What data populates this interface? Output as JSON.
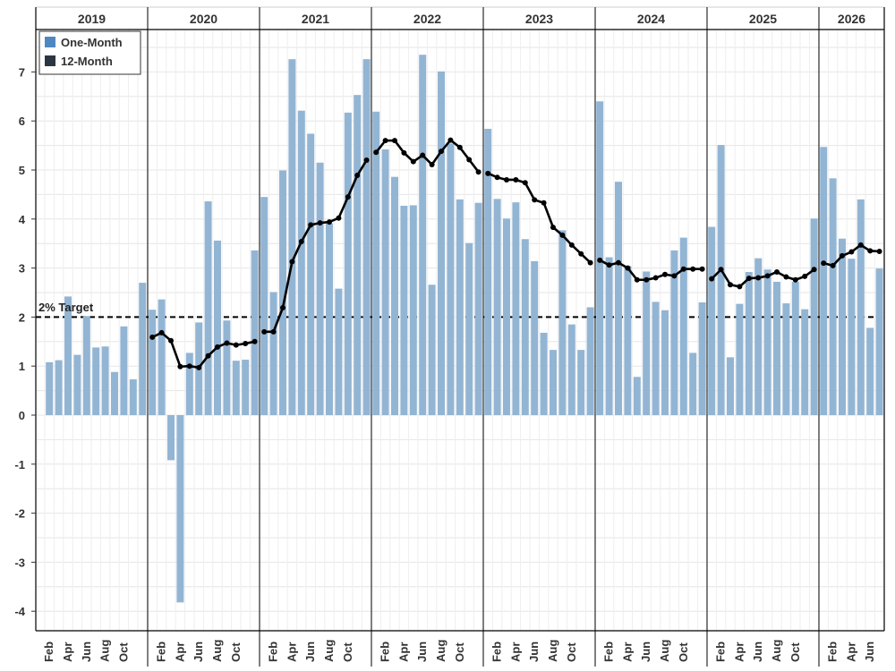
{
  "chart_data": {
    "type": "bar",
    "title": "",
    "xlabel": "",
    "ylabel": "",
    "ylim": [
      -4.5,
      7.8
    ],
    "yticks": [
      -4,
      -3,
      -2,
      -1,
      0,
      1,
      2,
      3,
      4,
      5,
      6,
      7
    ],
    "grid": true,
    "legend_position": "top-left",
    "years": [
      "2019",
      "2020",
      "2021",
      "2022",
      "2023",
      "2024",
      "2025",
      "2026"
    ],
    "month_tick_labels": [
      "Feb",
      "Apr",
      "Jun",
      "Aug",
      "Oct"
    ],
    "reference_line": {
      "label": "2% Target",
      "value": 2
    },
    "colors": {
      "one_month": "#4f87c0",
      "one_month_bar": "#93b5d4",
      "twelve_month": "#2b3544",
      "twelve_month_line": "#000000",
      "target_line": "#000000"
    },
    "series": [
      {
        "name": "One-Month",
        "type": "bar",
        "values": [
          [
            1.08,
            1.12,
            2.42,
            1.23,
            2.02,
            1.38,
            1.4,
            0.88,
            1.81,
            0.73,
            2.7
          ],
          [
            2.15,
            2.36,
            -0.92,
            -3.82,
            1.27,
            1.89,
            4.36,
            3.56,
            1.93,
            1.11,
            1.13,
            3.36
          ],
          [
            4.45,
            2.51,
            4.99,
            7.26,
            6.21,
            5.74,
            5.15,
            3.91,
            2.58,
            6.17,
            6.53,
            7.26
          ],
          [
            6.19,
            5.42,
            4.86,
            4.27,
            4.28,
            7.35,
            2.66,
            7.01,
            5.54,
            4.4,
            3.51,
            4.33
          ],
          [
            5.84,
            4.41,
            4.01,
            4.34,
            3.59,
            3.14,
            1.68,
            1.33,
            3.77,
            1.85,
            1.33,
            2.2
          ],
          [
            6.4,
            3.22,
            4.76,
            3.04,
            0.78,
            2.93,
            2.31,
            2.14,
            3.36,
            3.62,
            1.27,
            2.3
          ],
          [
            3.84,
            5.51,
            1.18,
            2.27,
            2.92,
            3.2,
            2.97,
            2.72,
            2.28,
            2.72,
            2.16,
            4.01
          ],
          [
            5.47,
            4.83,
            3.6,
            3.19,
            4.4,
            1.78,
            2.99
          ]
        ]
      },
      {
        "name": "12-Month",
        "type": "line",
        "values": [
          [
            null,
            null,
            null,
            null,
            null,
            null,
            null,
            null,
            null,
            null,
            null
          ],
          [
            1.59,
            1.68,
            1.52,
            0.99,
            1.0,
            0.97,
            1.21,
            1.39,
            1.47,
            1.43,
            1.46,
            1.5
          ],
          [
            1.7,
            1.7,
            2.19,
            3.13,
            3.54,
            3.88,
            3.92,
            3.94,
            4.02,
            4.45,
            4.89,
            5.2
          ],
          [
            5.36,
            5.6,
            5.6,
            5.35,
            5.17,
            5.3,
            5.11,
            5.38,
            5.61,
            5.46,
            5.21,
            4.96
          ],
          [
            4.93,
            4.85,
            4.8,
            4.8,
            4.74,
            4.39,
            4.33,
            3.83,
            3.67,
            3.47,
            3.29,
            3.11
          ],
          [
            3.16,
            3.06,
            3.11,
            3.0,
            2.76,
            2.76,
            2.8,
            2.87,
            2.84,
            2.98,
            2.98,
            2.98
          ],
          [
            2.78,
            2.97,
            2.66,
            2.62,
            2.79,
            2.8,
            2.84,
            2.92,
            2.82,
            2.76,
            2.83,
            2.97
          ],
          [
            3.1,
            3.05,
            3.25,
            3.33,
            3.47,
            3.35,
            3.34
          ]
        ]
      }
    ]
  }
}
